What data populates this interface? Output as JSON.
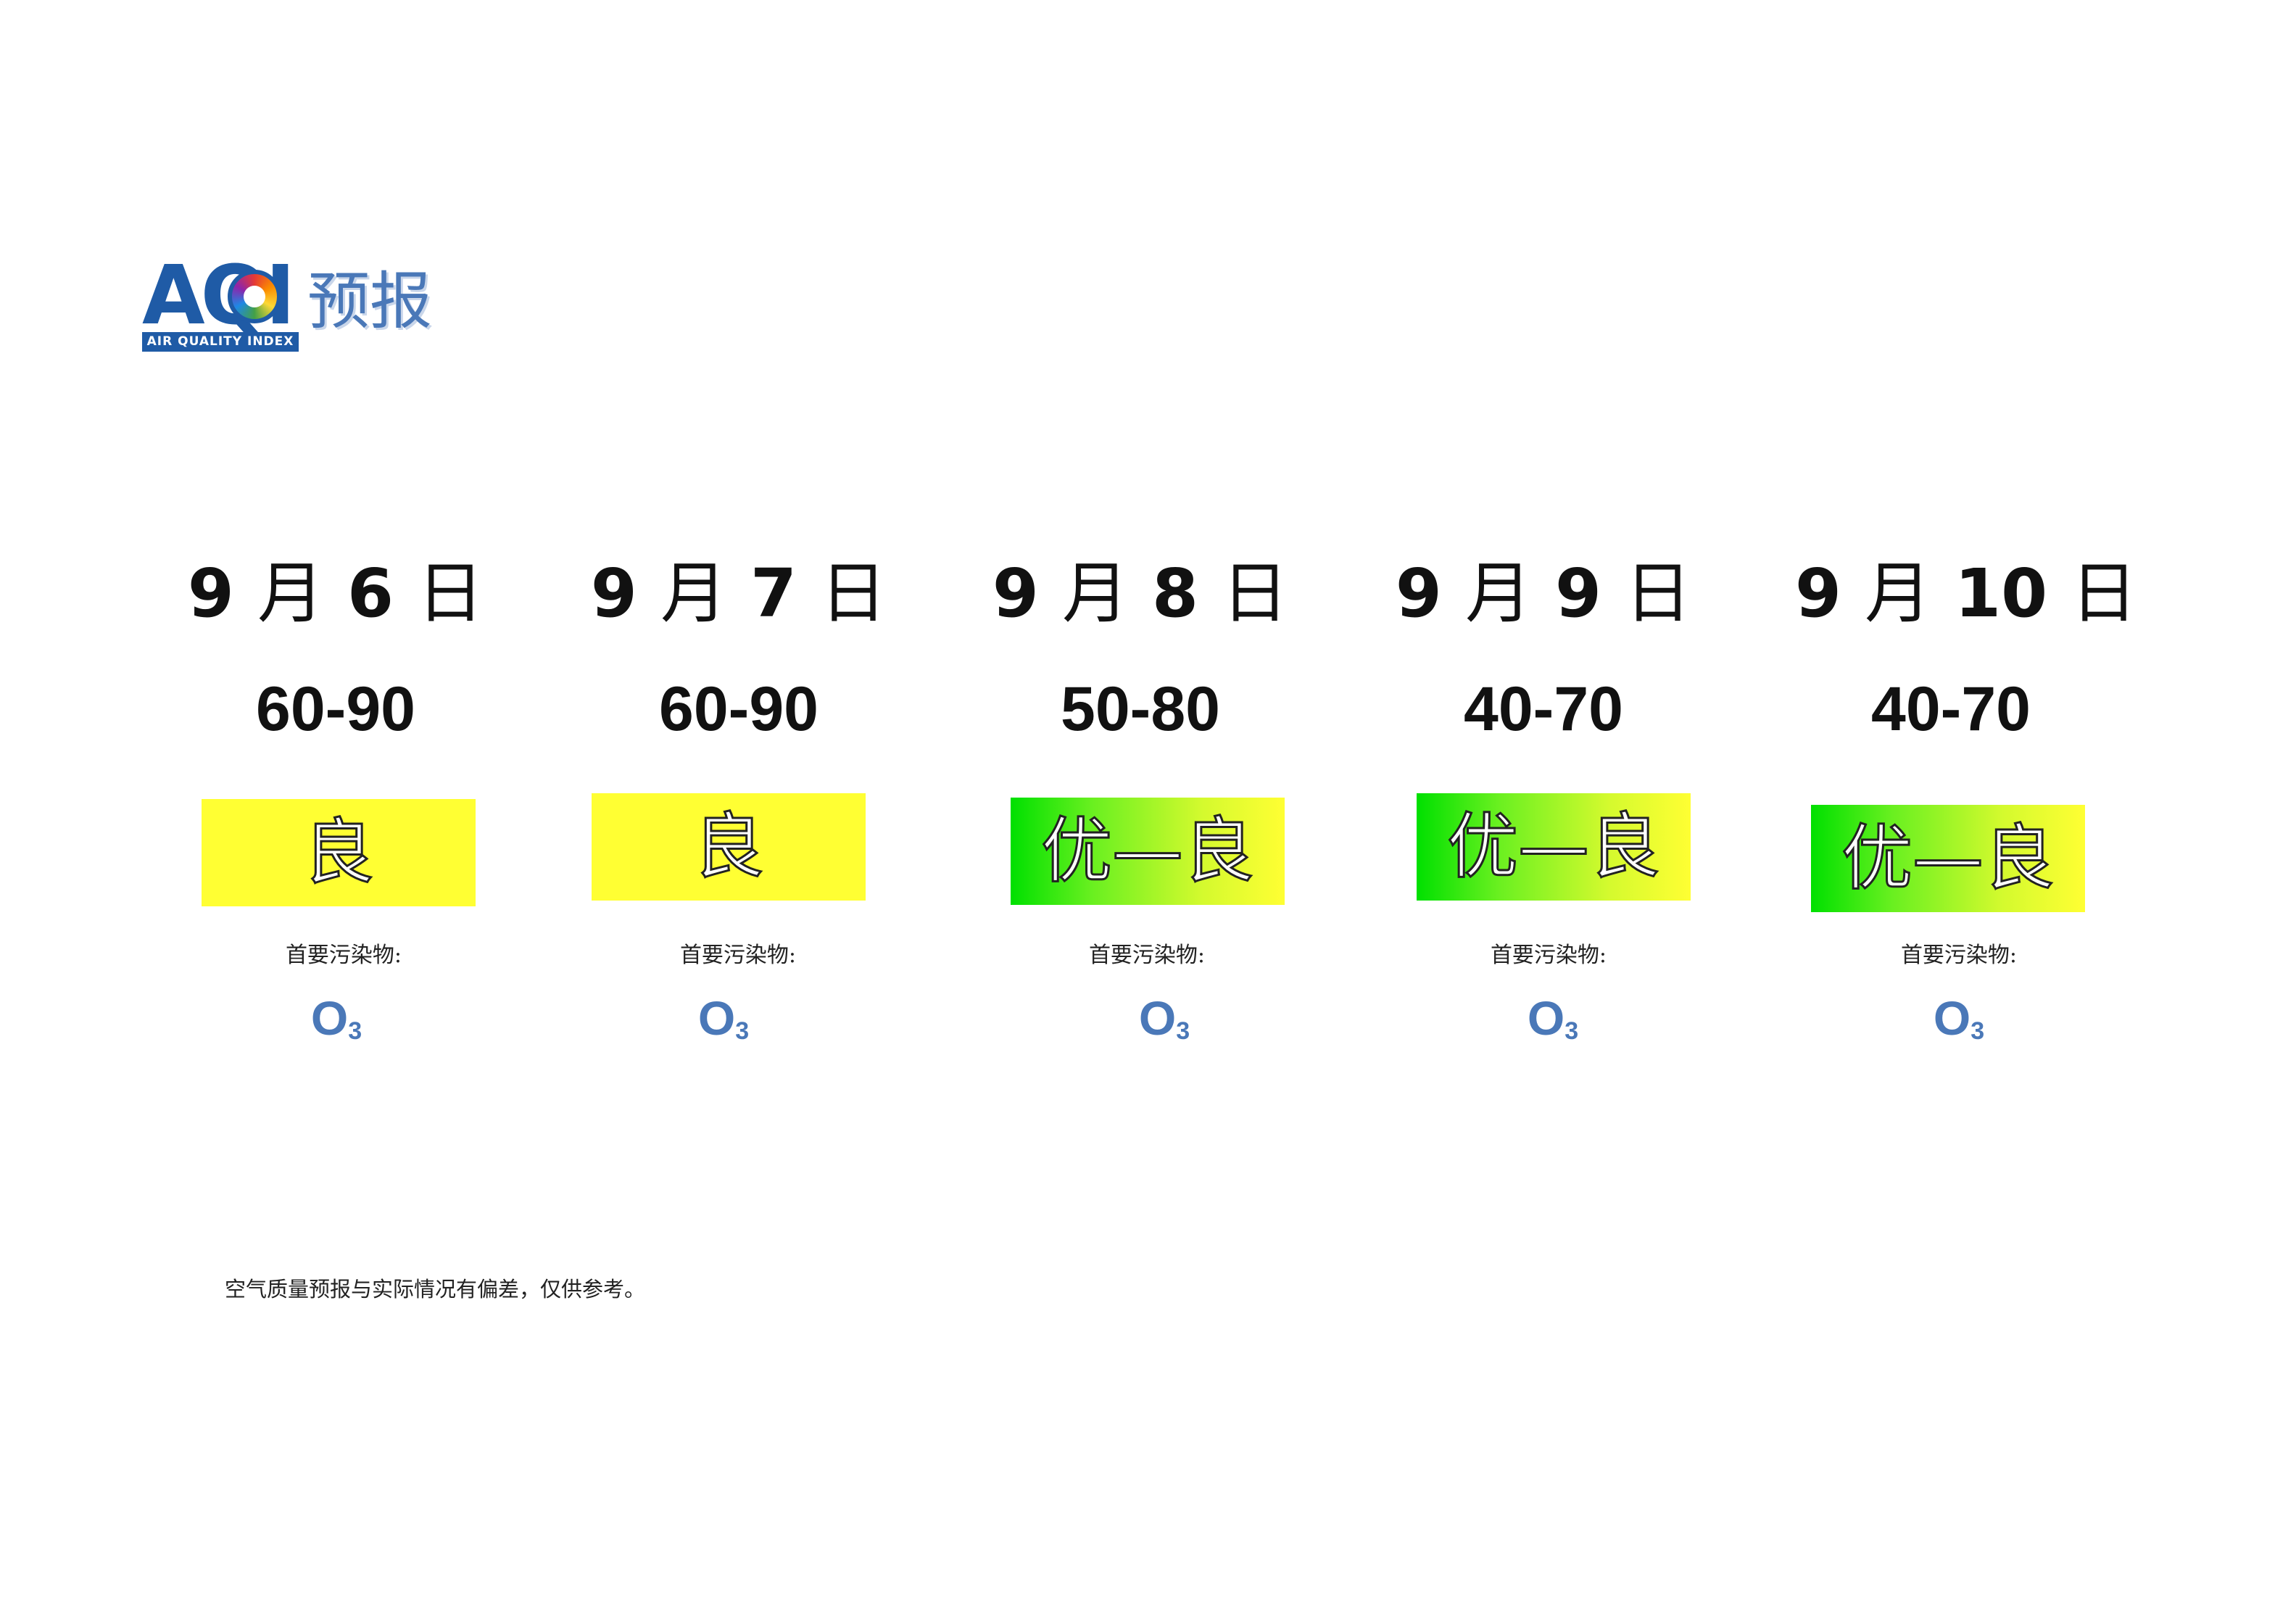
{
  "header": {
    "logo_text": "AQI",
    "logo_caption": "AIR QUALITY INDEX",
    "title": "预报"
  },
  "forecast": [
    {
      "date_month": "9",
      "date_month_unit": "月",
      "date_day": "6",
      "date_day_unit": "日",
      "aqi_range": "60-90",
      "level": "良",
      "level_color": "#ffff33",
      "pollutant_label": "首要污染物:",
      "pollutant": "O",
      "pollutant_sub": "3"
    },
    {
      "date_month": "9",
      "date_month_unit": "月",
      "date_day": "7",
      "date_day_unit": "日",
      "aqi_range": "60-90",
      "level": "良",
      "level_color": "#ffff33",
      "pollutant_label": "首要污染物:",
      "pollutant": "O",
      "pollutant_sub": "3"
    },
    {
      "date_month": "9",
      "date_month_unit": "月",
      "date_day": "8",
      "date_day_unit": "日",
      "aqi_range": "50-80",
      "level": "优—良",
      "level_color": "#00e000",
      "pollutant_label": "首要污染物:",
      "pollutant": "O",
      "pollutant_sub": "3"
    },
    {
      "date_month": "9",
      "date_month_unit": "月",
      "date_day": "9",
      "date_day_unit": "日",
      "aqi_range": "40-70",
      "level": "优—良",
      "level_color": "#00e000",
      "pollutant_label": "首要污染物:",
      "pollutant": "O",
      "pollutant_sub": "3"
    },
    {
      "date_month": "9",
      "date_month_unit": "月",
      "date_day": "10",
      "date_day_unit": "日",
      "aqi_range": "40-70",
      "level": "优—良",
      "level_color": "#00e000",
      "pollutant_label": "首要污染物:",
      "pollutant": "O",
      "pollutant_sub": "3"
    }
  ],
  "footer": {
    "note": "空气质量预报与实际情况有偏差，仅供参考。"
  }
}
